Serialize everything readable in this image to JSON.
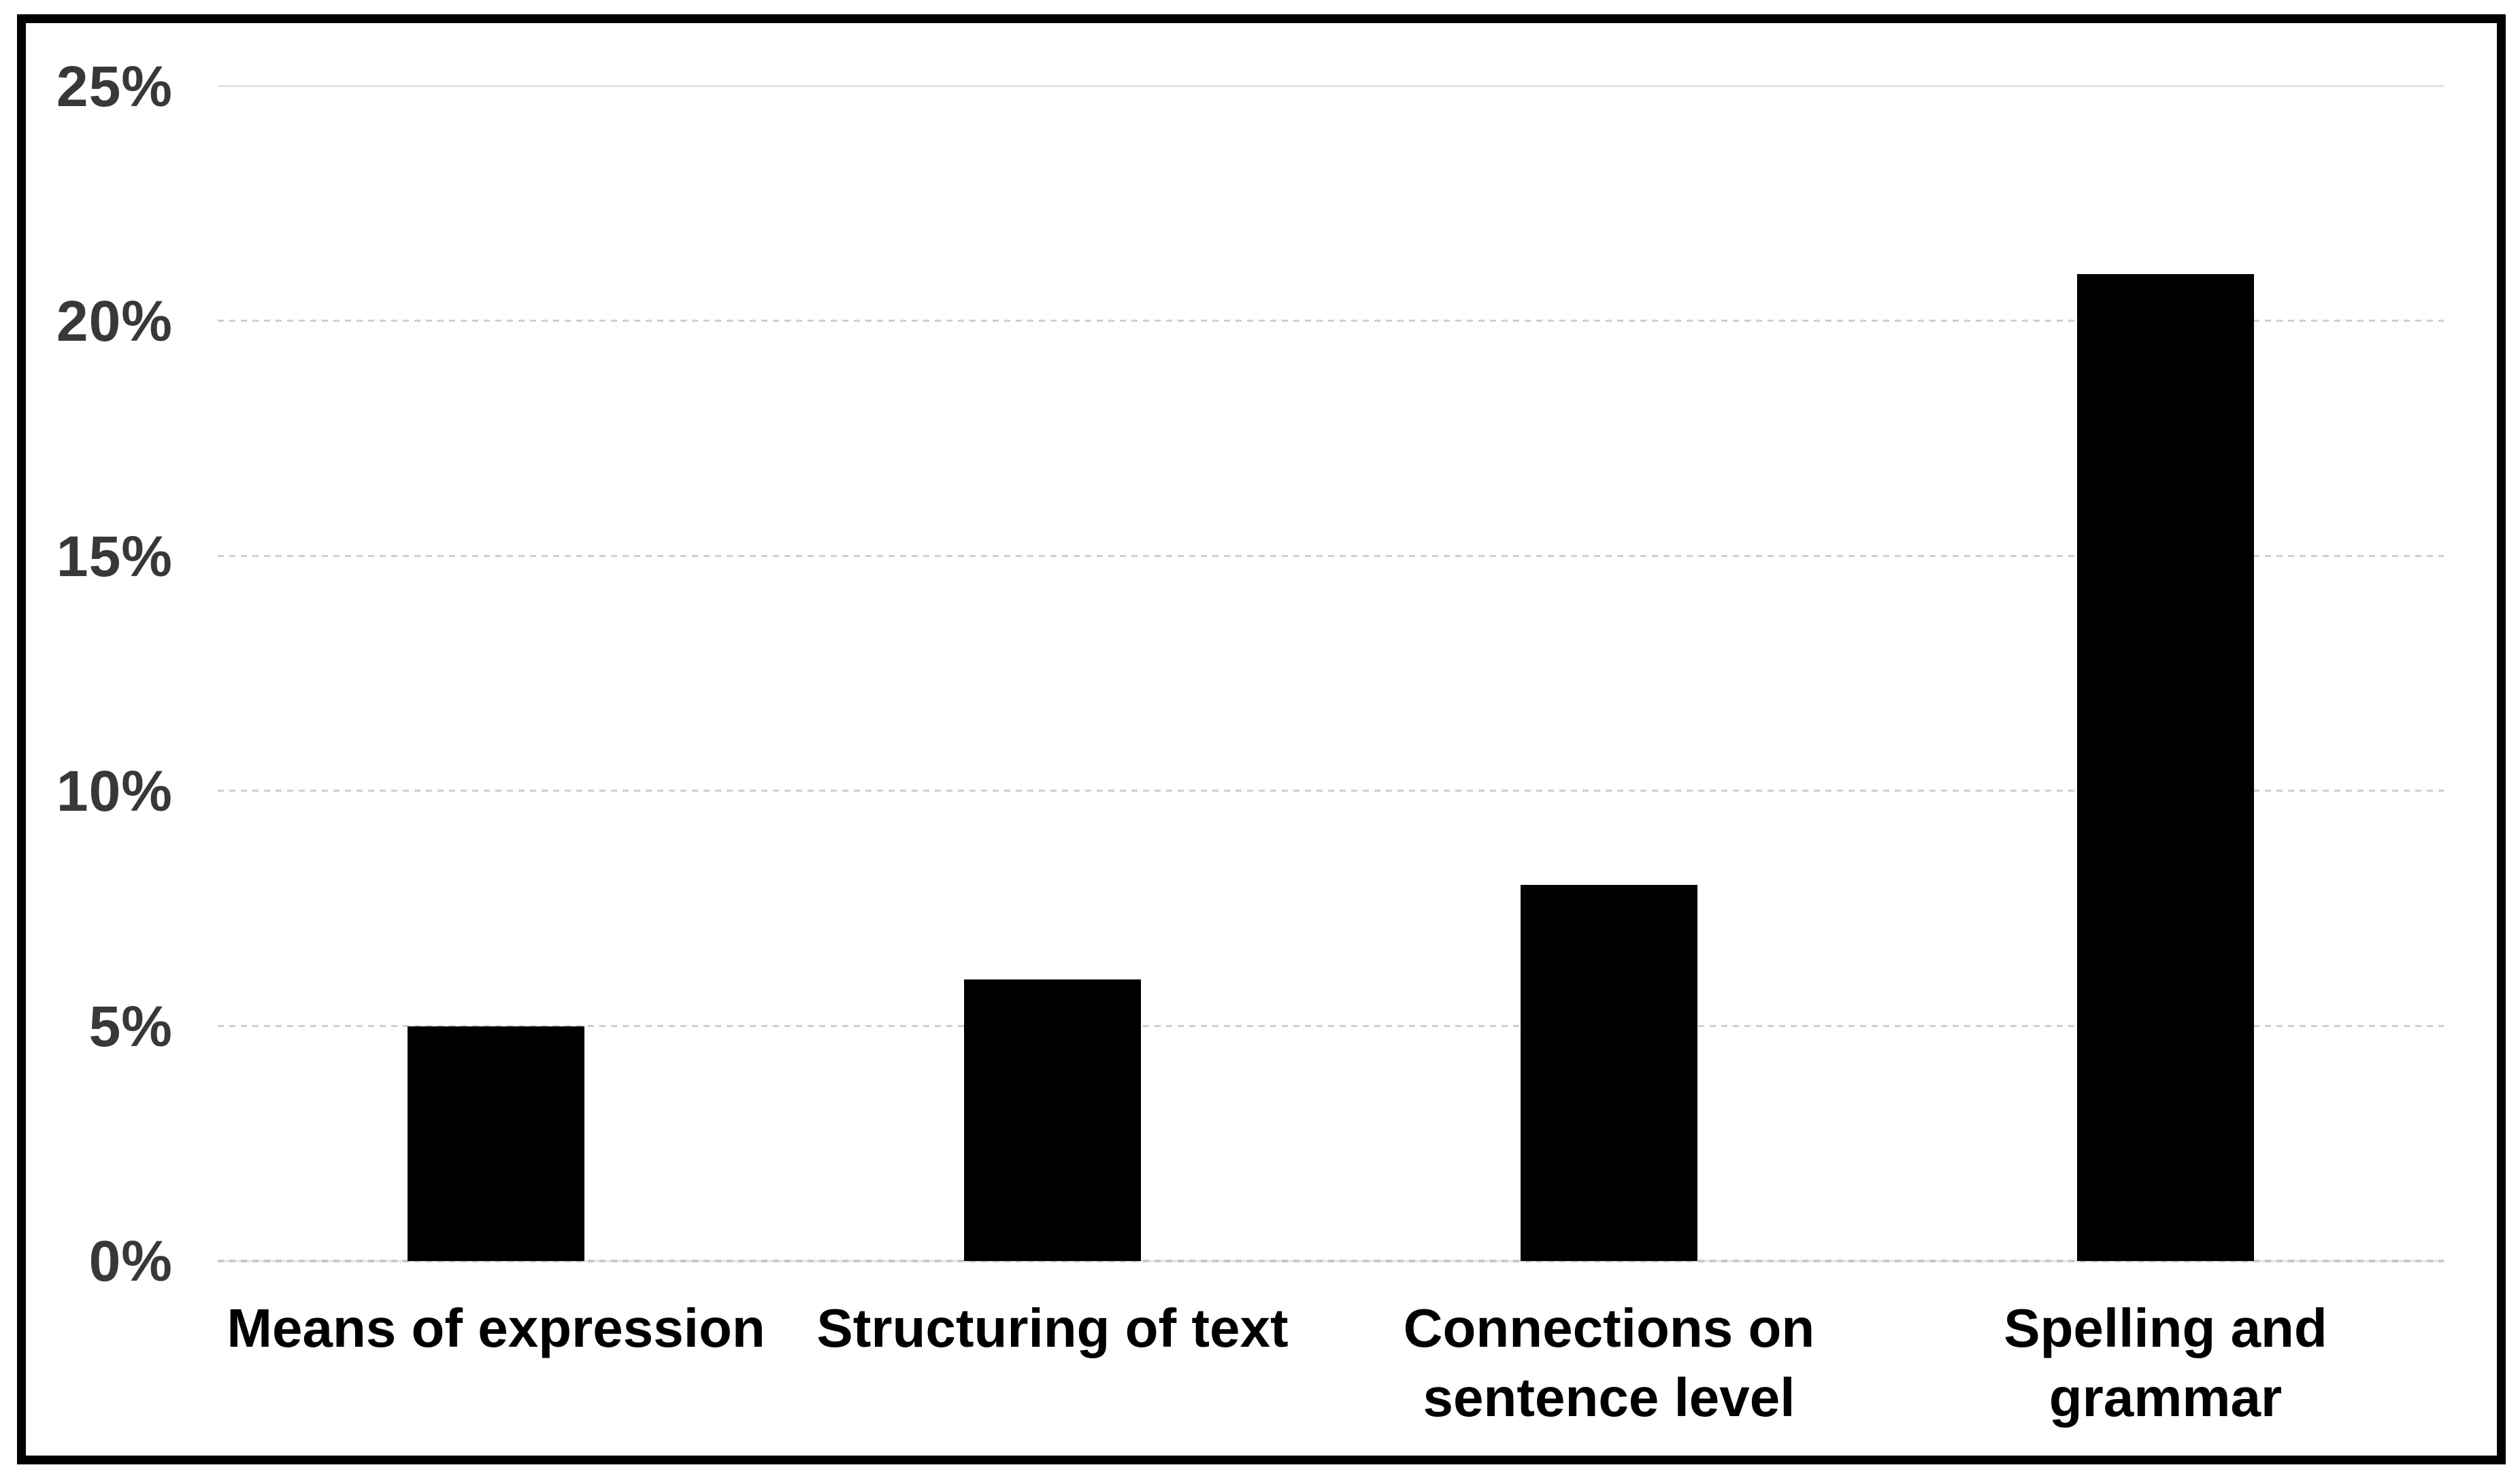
{
  "chart_data": {
    "type": "bar",
    "title": "",
    "xlabel": "",
    "ylabel": "",
    "categories": [
      "Means of expression",
      "Structuring of text",
      "Connections on sentence level",
      "Spelling and grammar"
    ],
    "values": [
      5,
      6,
      8,
      21
    ],
    "value_unit": "%",
    "ylim": [
      0,
      25
    ],
    "ytick_step": 5,
    "ytick_labels": [
      "0%",
      "5%",
      "10%",
      "15%",
      "20%",
      "25%"
    ],
    "grid": true,
    "gridline_style": "dotted",
    "top_gridline_style": "solid",
    "legend": "none",
    "colors": {
      "bar": "#000000",
      "gridline": "#cfcfcf",
      "tick_label": "#383838",
      "category_label": "#000000",
      "frame_border": "#000000",
      "background": "#ffffff"
    }
  }
}
